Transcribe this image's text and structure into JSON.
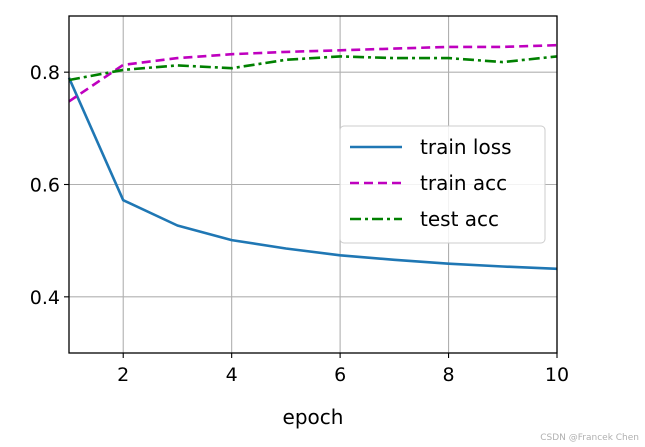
{
  "chart_data": {
    "type": "line",
    "xlabel": "epoch",
    "ylabel": "",
    "xlim": [
      1,
      10
    ],
    "ylim": [
      0.3,
      0.9
    ],
    "xticks": [
      2,
      4,
      6,
      8,
      10
    ],
    "yticks": [
      0.4,
      0.6,
      0.8
    ],
    "grid": true,
    "legend_position": "center-right",
    "x": [
      1,
      2,
      3,
      4,
      5,
      6,
      7,
      8,
      9,
      10
    ],
    "series": [
      {
        "name": "train loss",
        "color": "#1f77b4",
        "style": "solid",
        "values": [
          0.79,
          0.572,
          0.527,
          0.501,
          0.486,
          0.474,
          0.466,
          0.459,
          0.454,
          0.45
        ]
      },
      {
        "name": "train acc",
        "color": "#bf00bf",
        "style": "dashed",
        "values": [
          0.748,
          0.813,
          0.825,
          0.832,
          0.836,
          0.839,
          0.842,
          0.845,
          0.845,
          0.848
        ]
      },
      {
        "name": "test acc",
        "color": "#008000",
        "style": "dashdot",
        "values": [
          0.786,
          0.804,
          0.812,
          0.807,
          0.822,
          0.828,
          0.825,
          0.825,
          0.818,
          0.828
        ]
      }
    ]
  },
  "watermark": "CSDN @Francek Chen"
}
